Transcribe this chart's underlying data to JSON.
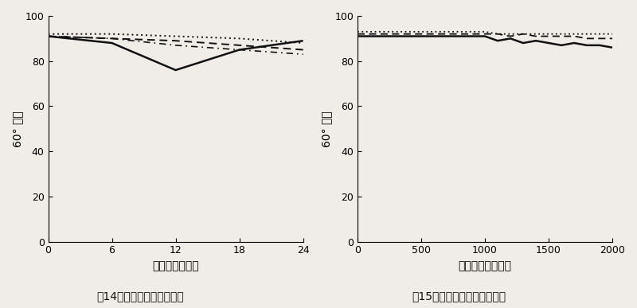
{
  "fig14": {
    "title": "图14－汽车涂料、户外老化",
    "xlabel": "曝晒时间（月）",
    "ylabel": "60° 光泽",
    "xlim": [
      0,
      24
    ],
    "ylim": [
      0,
      100
    ],
    "xticks": [
      0,
      6,
      12,
      18,
      24
    ],
    "yticks": [
      0,
      20,
      40,
      60,
      80,
      100
    ],
    "lines": [
      {
        "x": [
          0,
          6,
          12,
          18,
          24
        ],
        "y": [
          91,
          88,
          76,
          85,
          89
        ],
        "style": "solid",
        "color": "#111111",
        "linewidth": 1.8
      },
      {
        "x": [
          0,
          6,
          12,
          18,
          24
        ],
        "y": [
          91,
          90,
          89,
          87,
          85
        ],
        "style": "dashed",
        "color": "#111111",
        "linewidth": 1.4
      },
      {
        "x": [
          0,
          6,
          12,
          18,
          24
        ],
        "y": [
          92,
          92,
          91,
          90,
          88
        ],
        "style": "dotted",
        "color": "#111111",
        "linewidth": 1.4
      },
      {
        "x": [
          0,
          6,
          12,
          18,
          24
        ],
        "y": [
          91,
          90,
          87,
          85,
          83
        ],
        "style": "dashdot",
        "color": "#111111",
        "linewidth": 1.2
      }
    ]
  },
  "fig15": {
    "title": "图15－汽车涂料、实验室老化",
    "xlabel": "曝晒时间（小时）",
    "ylabel": "60° 光泽",
    "xlim": [
      0,
      2000
    ],
    "ylim": [
      0,
      100
    ],
    "xticks": [
      0,
      500,
      1000,
      1500,
      2000
    ],
    "yticks": [
      0,
      20,
      40,
      60,
      80,
      100
    ],
    "lines": [
      {
        "x": [
          0,
          200,
          400,
          600,
          800,
          1000,
          1100,
          1200,
          1300,
          1400,
          1500,
          1600,
          1700,
          1800,
          1900,
          2000
        ],
        "y": [
          91,
          91,
          91,
          91,
          91,
          91,
          89,
          90,
          88,
          89,
          88,
          87,
          88,
          87,
          87,
          86
        ],
        "style": "solid",
        "color": "#111111",
        "linewidth": 1.8
      },
      {
        "x": [
          0,
          200,
          400,
          600,
          800,
          1000,
          1100,
          1200,
          1300,
          1400,
          1500,
          1600,
          1700,
          1800,
          1900,
          2000
        ],
        "y": [
          92,
          92,
          92,
          92,
          92,
          92,
          92,
          91,
          92,
          91,
          91,
          91,
          91,
          90,
          90,
          90
        ],
        "style": "dashed",
        "color": "#111111",
        "linewidth": 1.3
      },
      {
        "x": [
          0,
          200,
          400,
          600,
          800,
          1000,
          1100,
          1200,
          1300,
          1400,
          1500,
          1600,
          1700,
          1800,
          1900,
          2000
        ],
        "y": [
          93,
          93,
          93,
          93,
          93,
          93,
          92,
          92,
          92,
          92,
          92,
          92,
          92,
          92,
          92,
          92
        ],
        "style": "dotted",
        "color": "#111111",
        "linewidth": 1.3
      }
    ]
  },
  "background_color": "#f0ede8",
  "font_size": 10,
  "title_font_size": 10
}
